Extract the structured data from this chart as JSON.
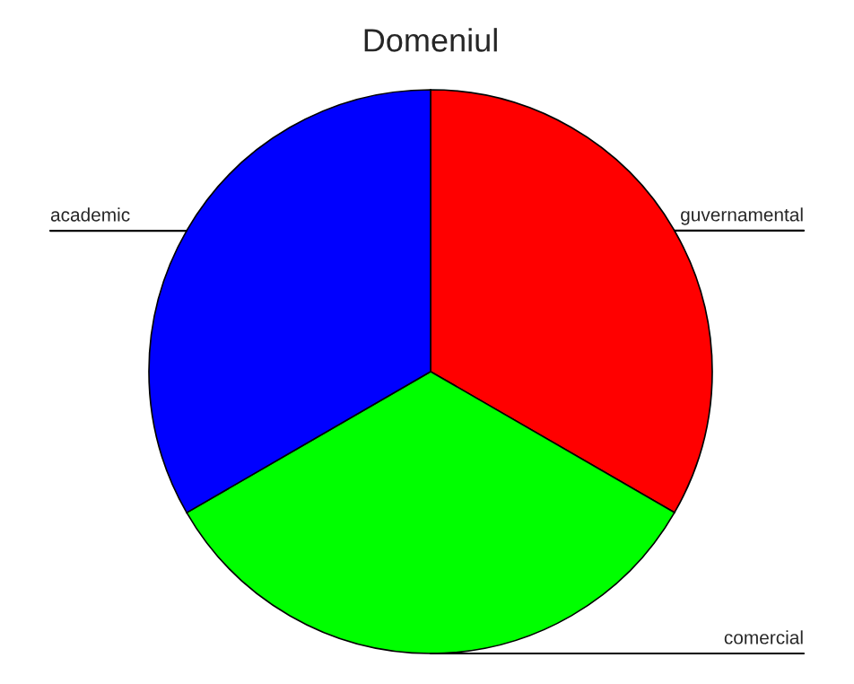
{
  "chart_data": {
    "type": "pie",
    "title": "Domeniul",
    "categories": [
      "guvernamental",
      "comercial",
      "academic"
    ],
    "values": [
      33.33,
      33.33,
      33.34
    ],
    "colors": [
      "#ff0000",
      "#00ff00",
      "#0000ff"
    ]
  }
}
